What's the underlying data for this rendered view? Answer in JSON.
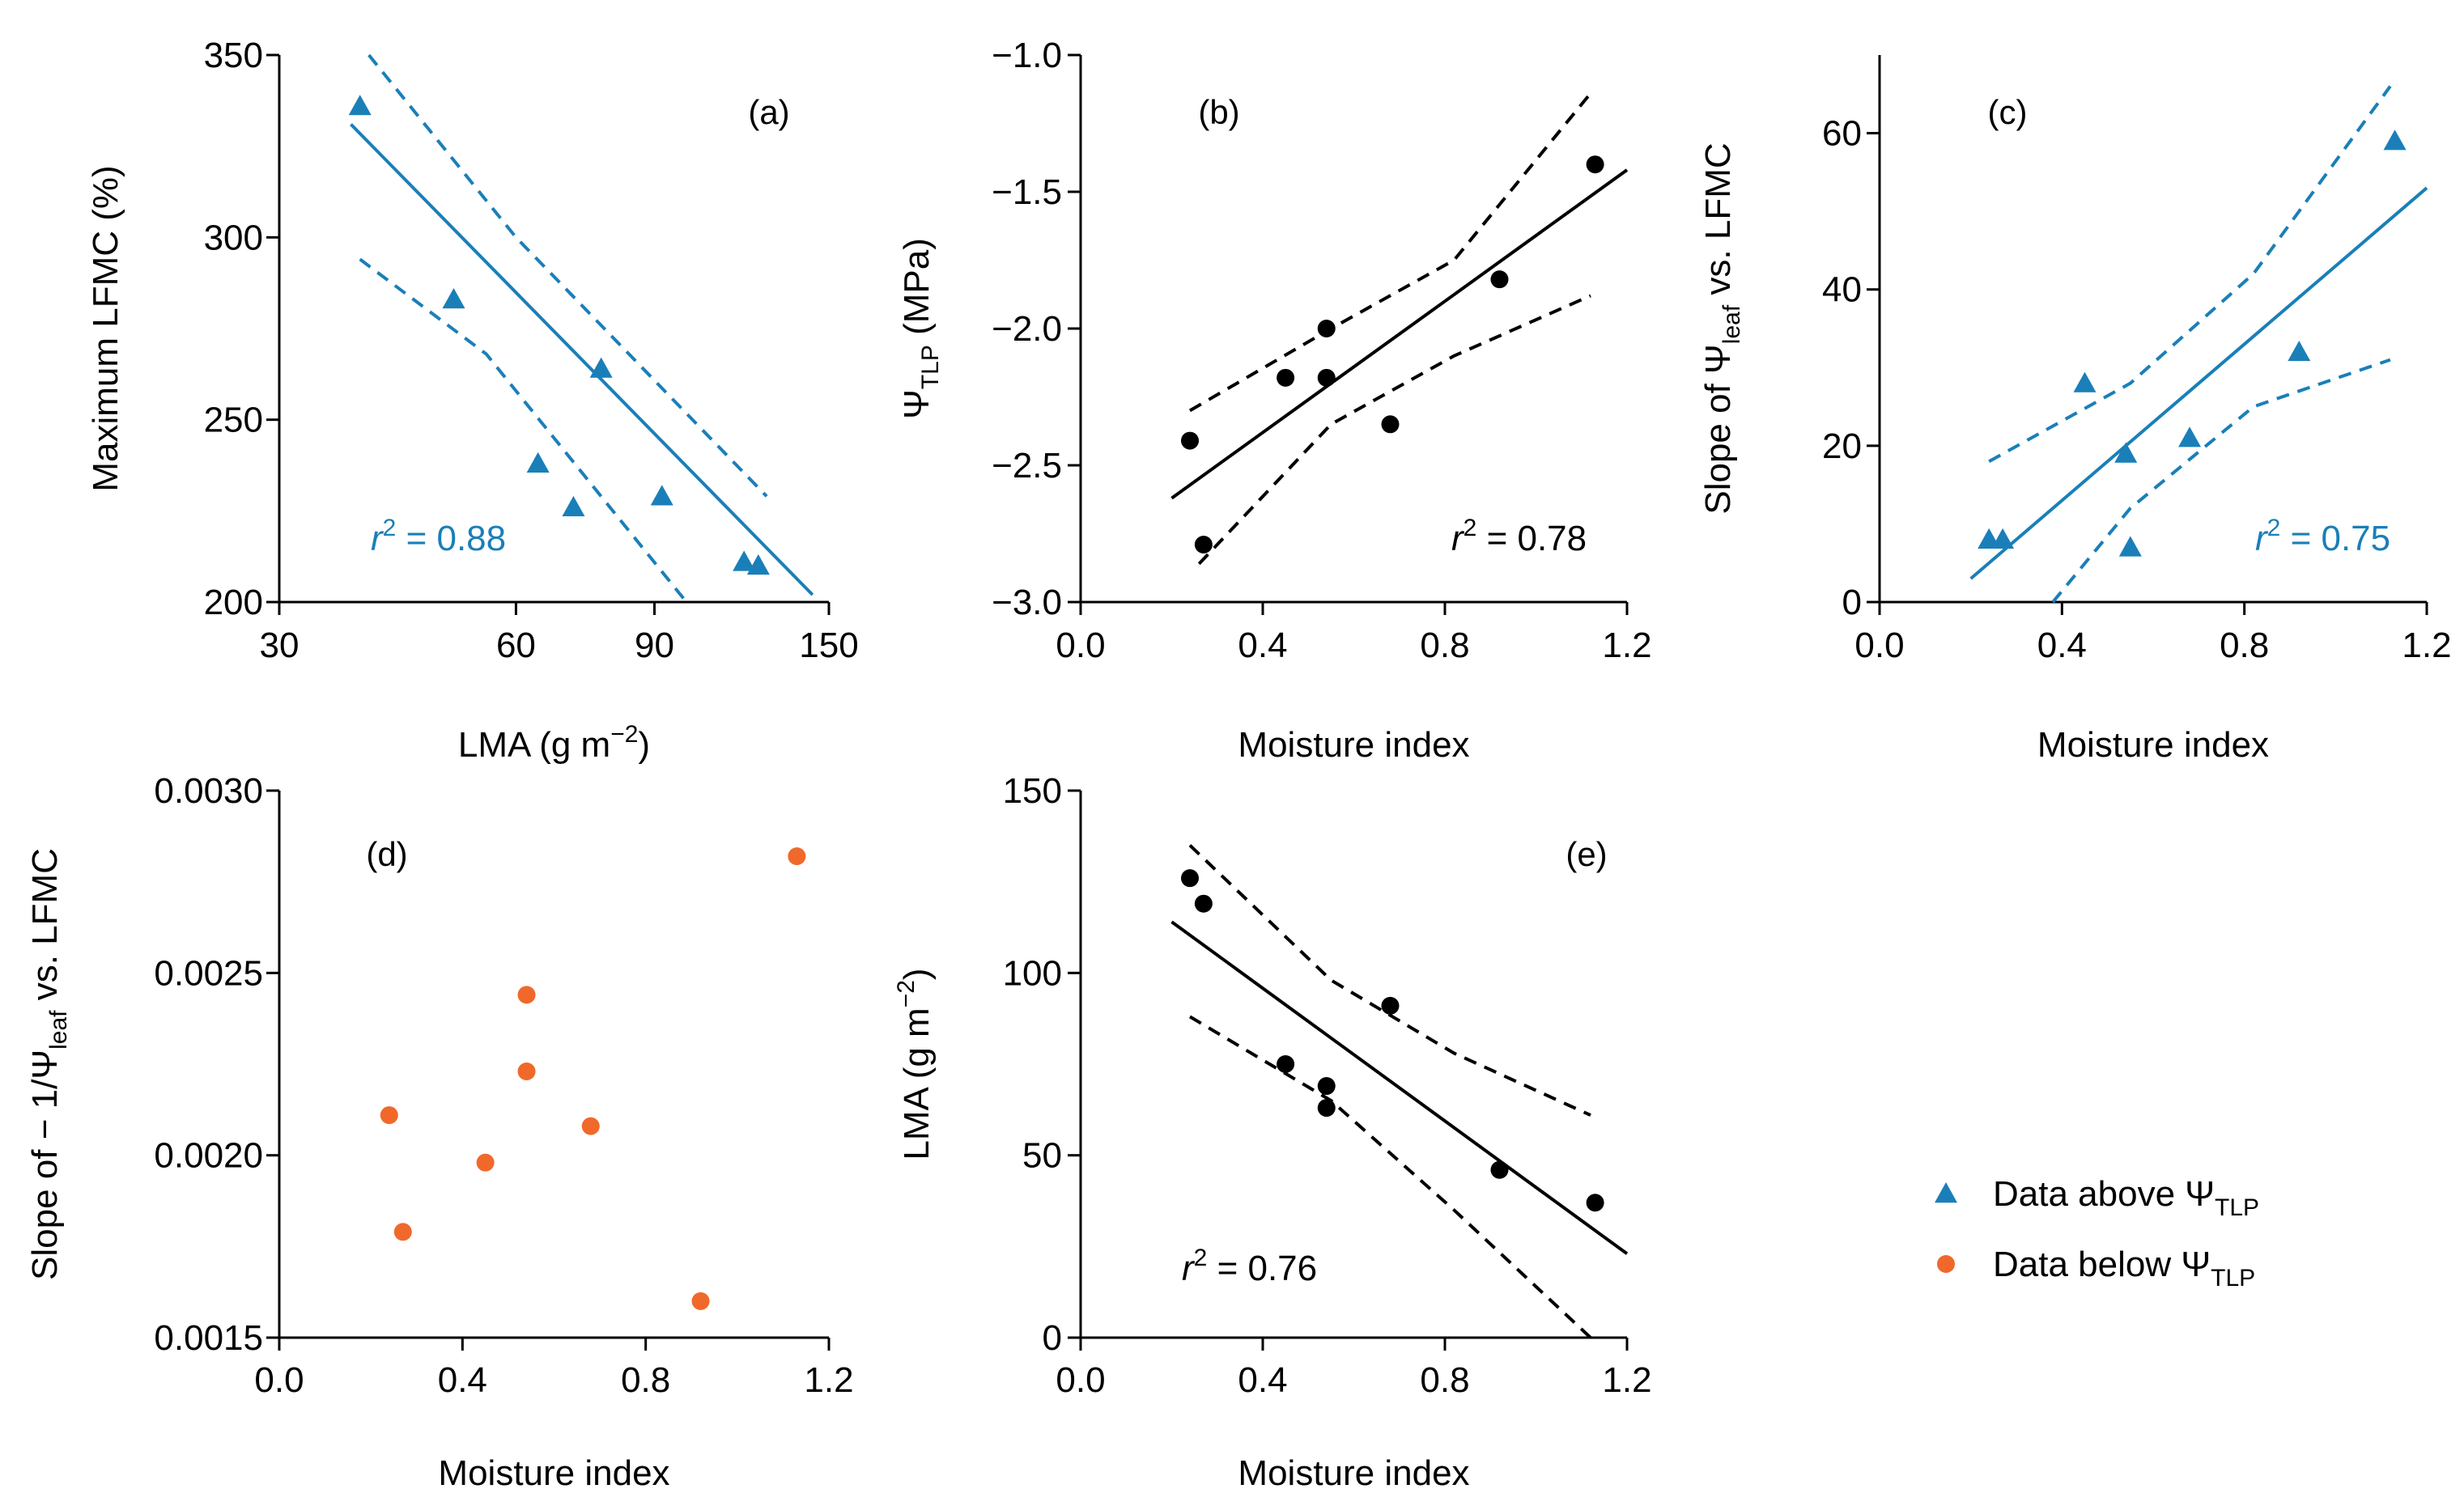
{
  "colors": {
    "blue": "#1a7fb8",
    "orange": "#f0692a",
    "black": "#000000"
  },
  "chart_data": [
    {
      "id": "a",
      "panel_label": "(a)",
      "type": "scatter",
      "x_scale": "log",
      "xlim": [
        30,
        150
      ],
      "ylim": [
        200,
        350
      ],
      "xticks": [
        30,
        60,
        90,
        150
      ],
      "yticks": [
        200,
        250,
        300,
        350
      ],
      "xlabel": {
        "pre": "LMA (g m",
        "sup": "−2",
        "post": ")"
      },
      "ylabel": {
        "text": "Maximum LFMC (%)"
      },
      "color": "blue",
      "marker": "triangle",
      "points": [
        [
          38,
          336
        ],
        [
          50,
          283
        ],
        [
          64,
          238
        ],
        [
          71,
          226
        ],
        [
          77,
          264
        ],
        [
          92,
          229
        ],
        [
          117,
          211
        ],
        [
          122,
          210
        ]
      ],
      "fit": [
        [
          37,
          331
        ],
        [
          143,
          202
        ]
      ],
      "ci_upper": [
        [
          39,
          350
        ],
        [
          60,
          300
        ],
        [
          125,
          229
        ]
      ],
      "ci_lower": [
        [
          38,
          294
        ],
        [
          55,
          268
        ],
        [
          98,
          201
        ]
      ],
      "r2": {
        "pre": "r",
        "sup": "2",
        "post": " = 0.88"
      }
    },
    {
      "id": "b",
      "panel_label": "(b)",
      "type": "scatter",
      "x_scale": "linear",
      "xlim": [
        0.0,
        1.2
      ],
      "ylim": [
        -3.0,
        -1.0
      ],
      "xticks": [
        "0.0",
        "0.4",
        "0.8",
        "1.2"
      ],
      "yticks": [
        "−3.0",
        "−2.5",
        "−2.0",
        "−1.5",
        "−1.0"
      ],
      "xlabel": {
        "text": "Moisture index"
      },
      "ylabel": {
        "pre": "Ψ",
        "sub": "TLP",
        "post": " (MPa)"
      },
      "color": "black",
      "marker": "circle",
      "points": [
        [
          0.24,
          -2.41
        ],
        [
          0.27,
          -2.79
        ],
        [
          0.45,
          -2.18
        ],
        [
          0.54,
          -2.0
        ],
        [
          0.54,
          -2.18
        ],
        [
          0.68,
          -2.35
        ],
        [
          0.92,
          -1.82
        ],
        [
          1.13,
          -1.4
        ]
      ],
      "fit": [
        [
          0.2,
          -2.62
        ],
        [
          1.2,
          -1.42
        ]
      ],
      "ci_upper": [
        [
          0.24,
          -2.3
        ],
        [
          0.55,
          -2.0
        ],
        [
          0.82,
          -1.75
        ],
        [
          1.12,
          -1.14
        ]
      ],
      "ci_lower": [
        [
          0.26,
          -2.86
        ],
        [
          0.55,
          -2.35
        ],
        [
          0.82,
          -2.1
        ],
        [
          1.12,
          -1.88
        ]
      ],
      "r2": {
        "pre": "r",
        "sup": "2",
        "post": " = 0.78"
      }
    },
    {
      "id": "c",
      "panel_label": "(c)",
      "type": "scatter",
      "x_scale": "linear",
      "xlim": [
        0.0,
        1.2
      ],
      "ylim": [
        0,
        70
      ],
      "xticks": [
        "0.0",
        "0.4",
        "0.8",
        "1.2"
      ],
      "yticks": [
        "0",
        "20",
        "40",
        "60"
      ],
      "xlabel": {
        "text": "Moisture index"
      },
      "ylabel": {
        "pre": "Slope of Ψ",
        "sub": "leaf",
        "post": " vs. LFMC"
      },
      "color": "blue",
      "marker": "triangle",
      "points": [
        [
          0.24,
          8
        ],
        [
          0.27,
          8
        ],
        [
          0.45,
          28
        ],
        [
          0.54,
          19
        ],
        [
          0.55,
          7
        ],
        [
          0.68,
          21
        ],
        [
          0.92,
          32
        ],
        [
          1.13,
          59
        ]
      ],
      "fit": [
        [
          0.2,
          3
        ],
        [
          1.2,
          53
        ]
      ],
      "ci_upper": [
        [
          0.24,
          18
        ],
        [
          0.55,
          28
        ],
        [
          0.82,
          42
        ],
        [
          1.12,
          66
        ]
      ],
      "ci_lower": [
        [
          0.38,
          0
        ],
        [
          0.55,
          12
        ],
        [
          0.82,
          25
        ],
        [
          1.12,
          31
        ]
      ],
      "r2": {
        "pre": "r",
        "sup": "2",
        "post": " = 0.75"
      }
    },
    {
      "id": "d",
      "panel_label": "(d)",
      "type": "scatter",
      "x_scale": "linear",
      "xlim": [
        0.0,
        1.2
      ],
      "ylim": [
        0.0015,
        0.003
      ],
      "xticks": [
        "0.0",
        "0.4",
        "0.8",
        "1.2"
      ],
      "yticks": [
        "0.0015",
        "0.0020",
        "0.0025",
        "0.0030"
      ],
      "xlabel": {
        "text": "Moisture index"
      },
      "ylabel": {
        "pre": "Slope of − 1/Ψ",
        "sub": "leaf",
        "post": " vs. LFMC"
      },
      "color": "orange",
      "marker": "circle",
      "points": [
        [
          0.24,
          0.00211
        ],
        [
          0.27,
          0.00179
        ],
        [
          0.45,
          0.00198
        ],
        [
          0.54,
          0.00244
        ],
        [
          0.54,
          0.00223
        ],
        [
          0.68,
          0.00208
        ],
        [
          0.92,
          0.0016
        ],
        [
          1.13,
          0.00282
        ]
      ]
    },
    {
      "id": "e",
      "panel_label": "(e)",
      "type": "scatter",
      "x_scale": "linear",
      "xlim": [
        0.0,
        1.2
      ],
      "ylim": [
        0,
        150
      ],
      "xticks": [
        "0.0",
        "0.4",
        "0.8",
        "1.2"
      ],
      "yticks": [
        "0",
        "50",
        "100",
        "150"
      ],
      "xlabel": {
        "text": "Moisture index"
      },
      "ylabel": {
        "pre": "LMA (g m",
        "sup": "−2",
        "post": ")"
      },
      "color": "black",
      "marker": "circle",
      "points": [
        [
          0.24,
          126
        ],
        [
          0.27,
          119
        ],
        [
          0.45,
          75
        ],
        [
          0.54,
          69
        ],
        [
          0.54,
          63
        ],
        [
          0.68,
          91
        ],
        [
          0.92,
          46
        ],
        [
          1.13,
          37
        ]
      ],
      "fit": [
        [
          0.2,
          114
        ],
        [
          1.2,
          23
        ]
      ],
      "ci_upper": [
        [
          0.24,
          135
        ],
        [
          0.55,
          98
        ],
        [
          0.82,
          78
        ],
        [
          1.12,
          61
        ]
      ],
      "ci_lower": [
        [
          0.24,
          88
        ],
        [
          0.55,
          65
        ],
        [
          0.82,
          35
        ],
        [
          1.12,
          0
        ]
      ],
      "r2": {
        "pre": "r",
        "sup": "2",
        "post": " = 0.76"
      }
    }
  ],
  "legend": [
    {
      "marker": "triangle",
      "color": "blue",
      "text": "Data above Ψ",
      "sub": "TLP"
    },
    {
      "marker": "circle",
      "color": "orange",
      "text": "Data below Ψ",
      "sub": "TLP"
    }
  ]
}
